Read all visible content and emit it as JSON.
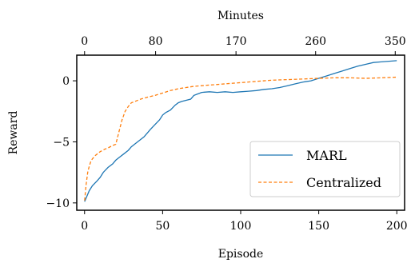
{
  "chart_data": {
    "type": "line",
    "xlabel": "Episode",
    "x2label": "Minutes",
    "ylabel": "Reward",
    "xlim": [
      -5,
      205
    ],
    "ylim": [
      -10.6,
      2.1
    ],
    "x_ticks": [
      0,
      50,
      100,
      150,
      200
    ],
    "x_tick_labels": [
      "0",
      "50",
      "100",
      "150",
      "200"
    ],
    "y_ticks": [
      -10,
      -5,
      0
    ],
    "y_tick_labels": [
      "−10",
      "−5",
      "0"
    ],
    "top_ticks": [
      0,
      45.5,
      97,
      148,
      199
    ],
    "top_tick_labels": [
      "0",
      "80",
      "170",
      "260",
      "350"
    ],
    "legend": {
      "position": "lower-right",
      "entries": [
        "MARL",
        "Centralized"
      ]
    },
    "series": [
      {
        "name": "MARL",
        "color": "#1f77b4",
        "style": "solid",
        "x": [
          0,
          3,
          5,
          8,
          10,
          12,
          15,
          18,
          20,
          22,
          25,
          28,
          30,
          32,
          35,
          38,
          40,
          42,
          45,
          48,
          50,
          52,
          55,
          58,
          60,
          62,
          65,
          68,
          70,
          72,
          75,
          80,
          85,
          90,
          95,
          100,
          105,
          110,
          115,
          120,
          125,
          130,
          135,
          140,
          145,
          150,
          155,
          160,
          165,
          170,
          175,
          180,
          185,
          190,
          195,
          200
        ],
        "y": [
          -9.9,
          -9.0,
          -8.6,
          -8.2,
          -7.9,
          -7.5,
          -7.1,
          -6.8,
          -6.5,
          -6.3,
          -6.0,
          -5.7,
          -5.4,
          -5.2,
          -4.9,
          -4.6,
          -4.3,
          -4.0,
          -3.6,
          -3.2,
          -2.8,
          -2.6,
          -2.4,
          -2.0,
          -1.8,
          -1.7,
          -1.6,
          -1.5,
          -1.2,
          -1.1,
          -0.95,
          -0.9,
          -0.95,
          -0.9,
          -0.95,
          -0.9,
          -0.85,
          -0.8,
          -0.7,
          -0.65,
          -0.55,
          -0.4,
          -0.25,
          -0.1,
          0.0,
          0.2,
          0.4,
          0.6,
          0.8,
          1.0,
          1.2,
          1.35,
          1.5,
          1.55,
          1.6,
          1.65
        ]
      },
      {
        "name": "Centralized",
        "color": "#ff7f0e",
        "style": "dashed",
        "x": [
          0,
          1,
          2,
          3,
          4,
          5,
          7,
          10,
          13,
          15,
          18,
          20,
          22,
          24,
          26,
          28,
          30,
          33,
          36,
          40,
          45,
          50,
          55,
          60,
          65,
          70,
          75,
          80,
          85,
          90,
          95,
          100,
          110,
          120,
          130,
          140,
          150,
          160,
          170,
          180,
          190,
          200
        ],
        "y": [
          -9.8,
          -8.5,
          -7.5,
          -7.0,
          -6.6,
          -6.4,
          -6.1,
          -5.8,
          -5.6,
          -5.5,
          -5.3,
          -5.2,
          -4.2,
          -3.2,
          -2.5,
          -2.1,
          -1.8,
          -1.65,
          -1.5,
          -1.35,
          -1.2,
          -1.0,
          -0.8,
          -0.65,
          -0.55,
          -0.45,
          -0.4,
          -0.35,
          -0.3,
          -0.25,
          -0.2,
          -0.15,
          -0.05,
          0.05,
          0.1,
          0.15,
          0.2,
          0.25,
          0.25,
          0.2,
          0.25,
          0.3
        ]
      }
    ]
  }
}
